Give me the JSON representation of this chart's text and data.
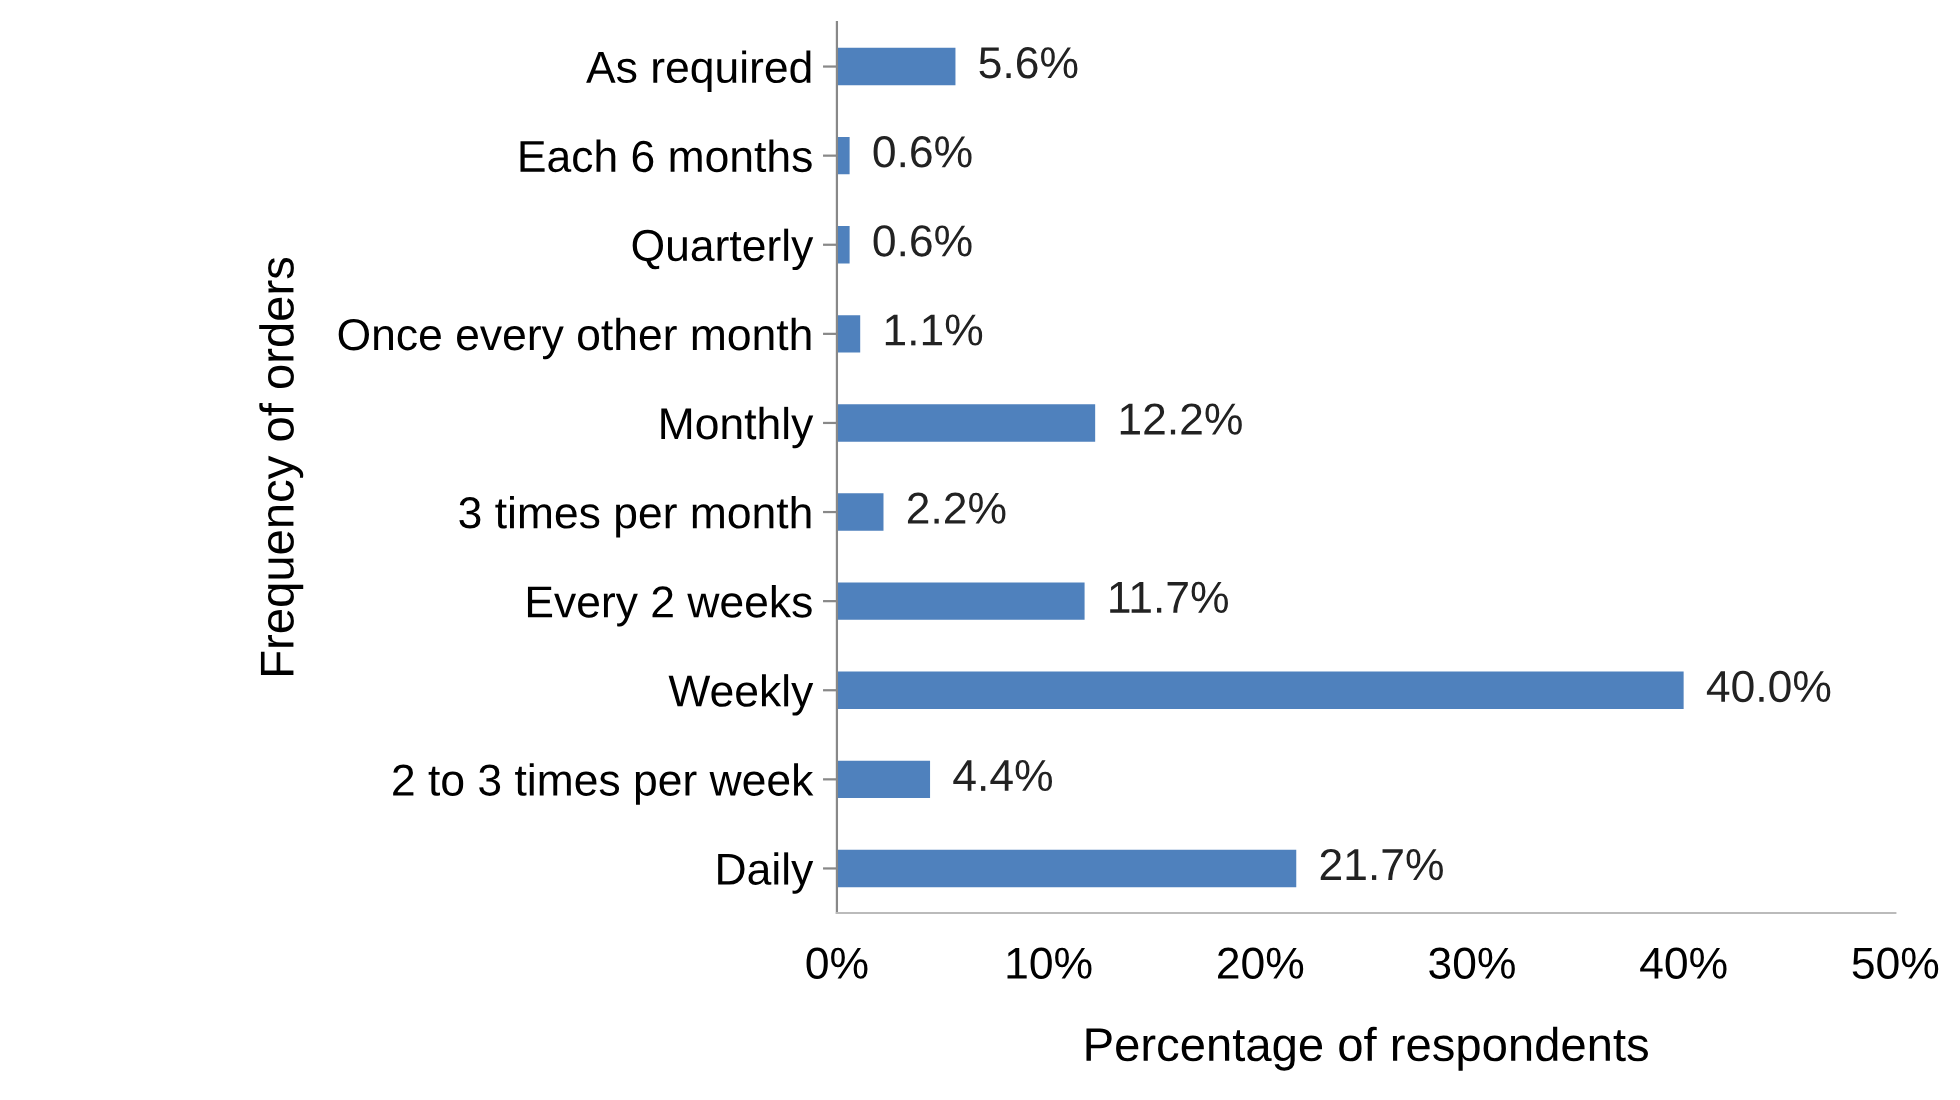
{
  "chart_data": {
    "type": "bar",
    "orientation": "horizontal",
    "xlabel": "Percentage of respondents",
    "ylabel": "Frequency of orders",
    "categories": [
      "As required",
      "Each 6 months",
      "Quarterly",
      "Once every other month",
      "Monthly",
      "3 times per month",
      "Every 2 weeks",
      "Weekly",
      "2 to 3 times per week",
      "Daily"
    ],
    "values": [
      5.6,
      0.6,
      0.6,
      1.1,
      12.2,
      2.2,
      11.7,
      40.0,
      4.4,
      21.7
    ],
    "value_labels": [
      "5.6%",
      "0.6%",
      "0.6%",
      "1.1%",
      "12.2%",
      "2.2%",
      "11.7%",
      "40.0%",
      "4.4%",
      "21.7%"
    ],
    "color": "#4f81bd",
    "xlim": [
      0,
      50
    ],
    "xticks": [
      {
        "value": 0,
        "label": "0%"
      },
      {
        "value": 10,
        "label": "10%"
      },
      {
        "value": 20,
        "label": "20%"
      },
      {
        "value": 30,
        "label": "30%"
      },
      {
        "value": 40,
        "label": "40%"
      },
      {
        "value": 50,
        "label": "50%"
      }
    ],
    "grid": false,
    "legend": false
  }
}
